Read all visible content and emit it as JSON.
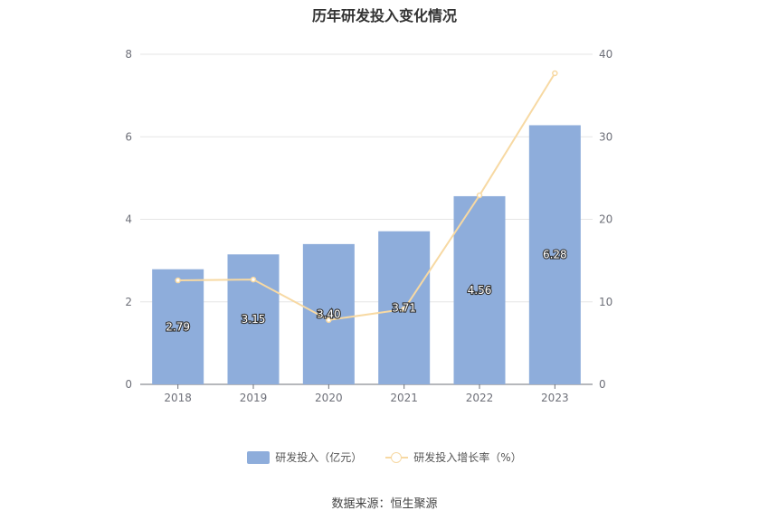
{
  "chart_data": {
    "type": "bar",
    "title": "历年研发投入变化情况",
    "categories": [
      "2018",
      "2019",
      "2020",
      "2021",
      "2022",
      "2023"
    ],
    "series": [
      {
        "name": "研发投入（亿元）",
        "type": "bar",
        "axis": "left",
        "values": [
          2.79,
          3.15,
          3.4,
          3.71,
          4.56,
          6.28
        ],
        "labels": [
          "2.79",
          "3.15",
          "3.40",
          "3.71",
          "4.56",
          "6.28"
        ],
        "color": "#8eaddb"
      },
      {
        "name": "研发投入增长率（%）",
        "type": "line",
        "axis": "right",
        "values": [
          12.6,
          12.7,
          7.8,
          9.1,
          22.9,
          37.7
        ],
        "color": "#f7d9a3"
      }
    ],
    "y_left": {
      "min": 0,
      "max": 8,
      "ticks": [
        "0",
        "2",
        "4",
        "6",
        "8"
      ]
    },
    "y_right": {
      "min": 0,
      "max": 40,
      "ticks": [
        "0",
        "10",
        "20",
        "30",
        "40"
      ]
    },
    "grid": true,
    "legend_position": "bottom"
  },
  "source": "数据来源：恒生聚源"
}
